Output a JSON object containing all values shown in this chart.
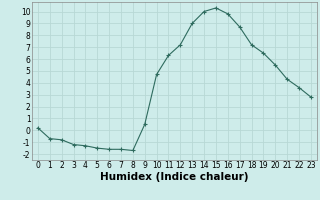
{
  "x": [
    0,
    1,
    2,
    3,
    4,
    5,
    6,
    7,
    8,
    9,
    10,
    11,
    12,
    13,
    14,
    15,
    16,
    17,
    18,
    19,
    20,
    21,
    22,
    23
  ],
  "y": [
    0.2,
    -0.7,
    -0.8,
    -1.2,
    -1.3,
    -1.5,
    -1.6,
    -1.6,
    -1.7,
    0.5,
    4.7,
    6.3,
    7.2,
    9.0,
    10.0,
    10.3,
    9.8,
    8.7,
    7.2,
    6.5,
    5.5,
    4.3,
    3.6,
    2.8
  ],
  "xlabel": "Humidex (Indice chaleur)",
  "ylim": [
    -2.5,
    10.8
  ],
  "xlim": [
    -0.5,
    23.5
  ],
  "yticks": [
    -2,
    -1,
    0,
    1,
    2,
    3,
    4,
    5,
    6,
    7,
    8,
    9,
    10
  ],
  "xticks": [
    0,
    1,
    2,
    3,
    4,
    5,
    6,
    7,
    8,
    9,
    10,
    11,
    12,
    13,
    14,
    15,
    16,
    17,
    18,
    19,
    20,
    21,
    22,
    23
  ],
  "line_color": "#2e6b5e",
  "marker": "+",
  "bg_color": "#ceecea",
  "grid_color": "#b8d8d5",
  "tick_label_fontsize": 5.5,
  "xlabel_fontsize": 7.5
}
